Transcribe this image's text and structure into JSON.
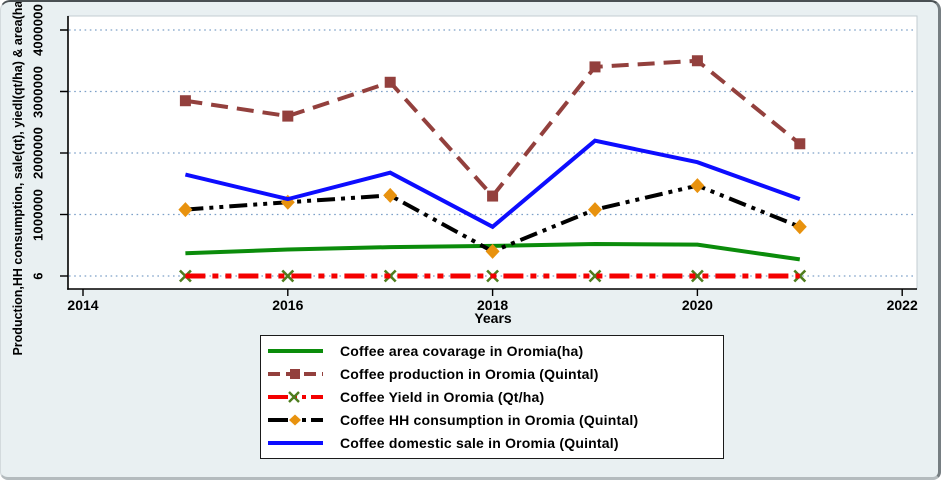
{
  "colors": {
    "figure_background": "#e9f0f2",
    "plot_background": "#ffffff",
    "plot_border": "#c3ccd1",
    "gridline": "#7da0c8",
    "axis": "#000000",
    "legend_border": "#1a1a1a",
    "legend_background": "#ffffff"
  },
  "chart_data": {
    "type": "line",
    "title": "",
    "xlabel": "Years",
    "ylabel": "Production,HH consumption, sale(qt), yiedl(qt/ha) & area(ha)",
    "x": [
      2015,
      2016,
      2017,
      2018,
      2019,
      2020,
      2021
    ],
    "x_ticks": [
      2014,
      2016,
      2018,
      2020,
      2022
    ],
    "xlim": [
      2014,
      2022
    ],
    "y_ticks": [
      "6",
      "1000000",
      "2000000",
      "3000000",
      "4000000"
    ],
    "y_tick_values": [
      6,
      1000000,
      2000000,
      3000000,
      4000000
    ],
    "ylim": [
      6,
      4230000
    ],
    "grid": "horizontal-dotted",
    "legend_position": "bottom-center",
    "series": [
      {
        "name": "Coffee area covarage in Oromia(ha)",
        "color": "#0b8c0b",
        "style": "solid",
        "marker": "none",
        "line_width": 4,
        "values": [
          370000,
          430000,
          470000,
          490000,
          520000,
          510000,
          270000
        ]
      },
      {
        "name": "Coffee production in Oromia (Quintal)",
        "color": "#93403d",
        "style": "dashed",
        "marker": "square",
        "line_width": 4,
        "values": [
          2850000,
          2600000,
          3150000,
          1300000,
          3400000,
          3500000,
          2150000
        ]
      },
      {
        "name": "Coffee Yield in Oromia (Qt/ha)",
        "color": "#f40000",
        "style": "dash-dot-dot",
        "marker": "x",
        "marker_color": "#4e7d1e",
        "line_width": 5,
        "values": [
          6,
          6,
          6,
          6,
          6,
          6,
          6
        ]
      },
      {
        "name": "Coffee HH consumption in Oromia (Quintal)",
        "color": "#000000",
        "style": "dash-dot-dot",
        "marker": "diamond",
        "marker_color": "#e8920e",
        "line_width": 4,
        "values": [
          1080000,
          1200000,
          1310000,
          400000,
          1080000,
          1470000,
          800000
        ]
      },
      {
        "name": "Coffee domestic sale in Oromia (Quintal)",
        "color": "#0d0dff",
        "style": "solid",
        "marker": "none",
        "line_width": 4,
        "values": [
          1650000,
          1250000,
          1680000,
          800000,
          2200000,
          1850000,
          1250000
        ]
      }
    ]
  }
}
